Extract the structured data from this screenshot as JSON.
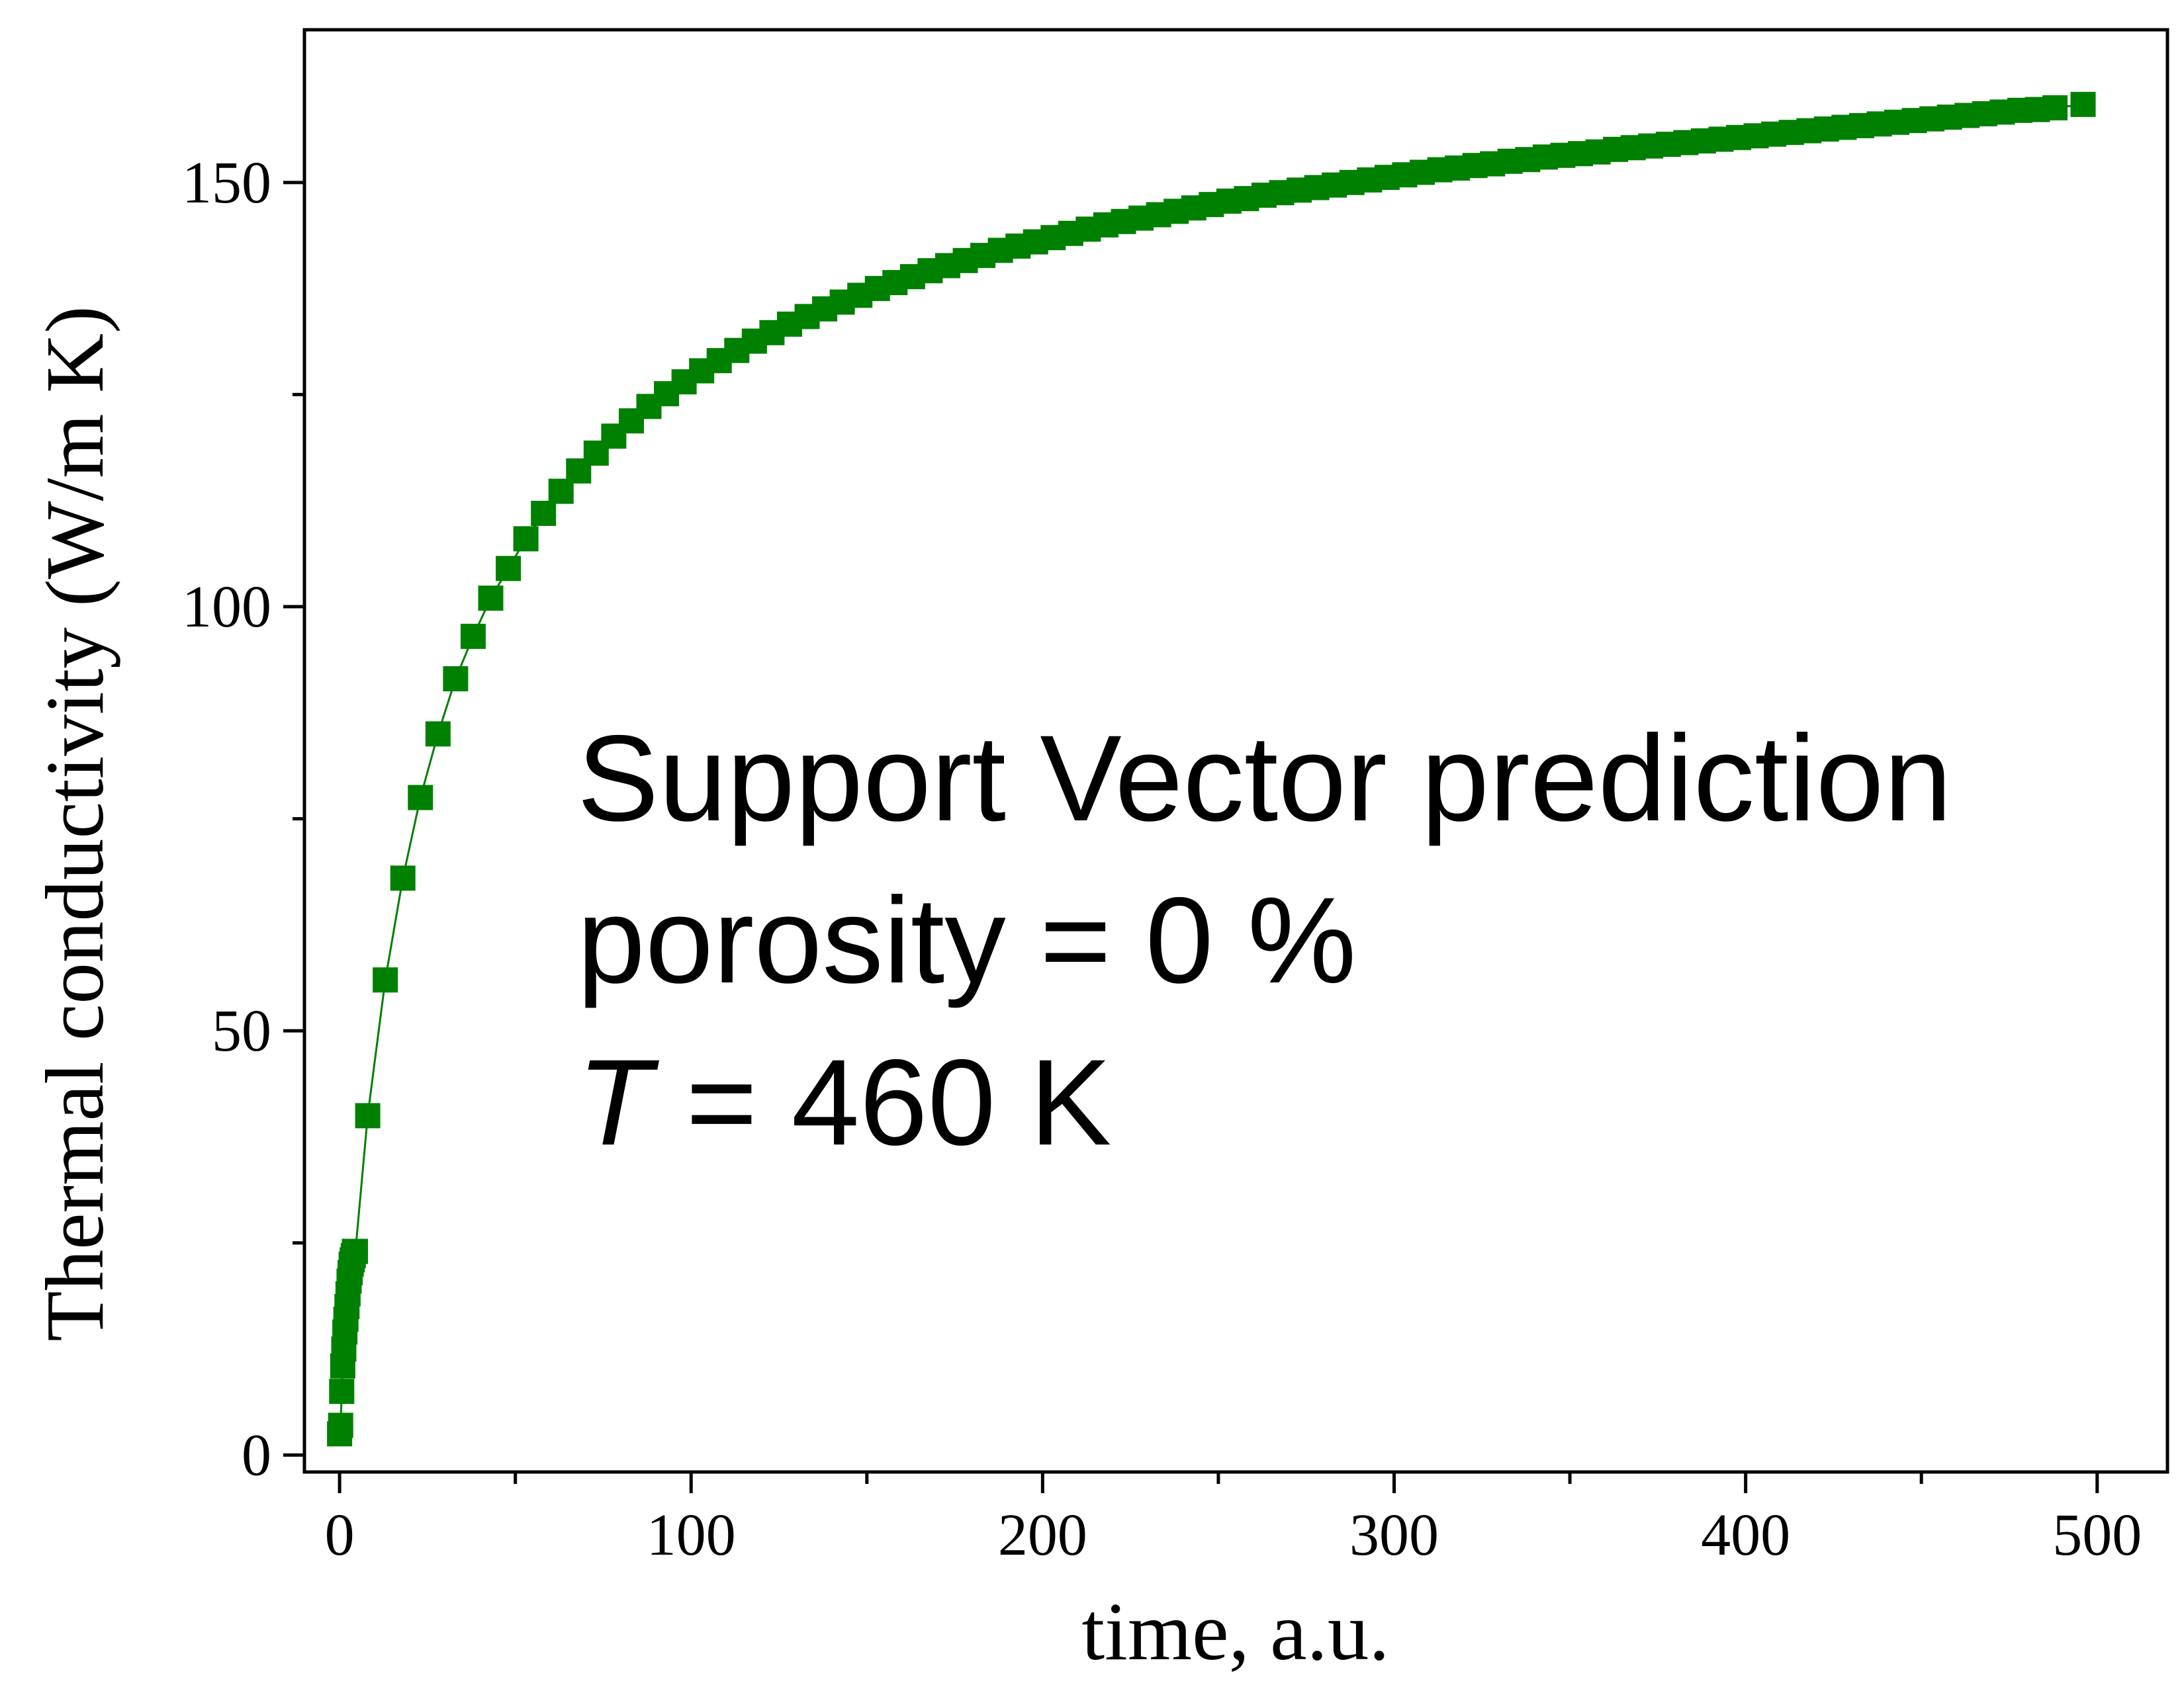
{
  "chart_data": {
    "type": "scatter",
    "xlabel": "time, a.u.",
    "ylabel": "Thermal conductivity (W/m K)",
    "xlim": [
      -10,
      520
    ],
    "ylim": [
      -2,
      168
    ],
    "xticks": [
      0,
      100,
      200,
      300,
      400,
      500
    ],
    "yticks": [
      0,
      50,
      100,
      150
    ],
    "x_minor_step": 50,
    "y_minor_step": 25,
    "grid": false,
    "marker": "square",
    "connect_line": true,
    "color": "#008000",
    "annotations": [
      {
        "text": "Support Vector prediction",
        "italic": false
      },
      {
        "text": "porosity = 0 %",
        "italic": false
      },
      {
        "prefix": "T",
        "text": " = 460 K",
        "prefix_italic": true
      }
    ],
    "series": [
      {
        "x": [
          0,
          0.3,
          0.6,
          0.9,
          1.2,
          1.5,
          1.8,
          2.1,
          2.4,
          2.7,
          3.0,
          3.3,
          3.6,
          3.9,
          4.2,
          4.5,
          8,
          13,
          18,
          23,
          28,
          33,
          38,
          43,
          48,
          53,
          58,
          63,
          68,
          73,
          78,
          83,
          88,
          93,
          98,
          103,
          108,
          113,
          118,
          123,
          128,
          133,
          138,
          143,
          148,
          153,
          158,
          163,
          168,
          173,
          178,
          183,
          188,
          193,
          198,
          203,
          208,
          213,
          218,
          223,
          228,
          233,
          238,
          243,
          248,
          253,
          258,
          263,
          268,
          273,
          278,
          283,
          288,
          293,
          298,
          303,
          308,
          313,
          318,
          323,
          328,
          333,
          338,
          343,
          348,
          353,
          358,
          363,
          368,
          373,
          378,
          383,
          388,
          393,
          398,
          403,
          408,
          413,
          418,
          423,
          428,
          433,
          438,
          443,
          448,
          453,
          458,
          463,
          468,
          473,
          478,
          483,
          488,
          496
        ],
        "y": [
          2.5,
          3.5,
          7.5,
          10.5,
          12.5,
          14.5,
          16,
          17.5,
          19,
          20.5,
          21.5,
          22.5,
          23,
          23.5,
          24,
          24,
          40,
          56,
          68,
          77.5,
          85,
          91.5,
          96.5,
          101,
          104.5,
          108,
          111,
          113.6,
          116,
          118.1,
          120.1,
          121.9,
          123.6,
          125.1,
          126.5,
          127.8,
          129,
          130.2,
          131.3,
          132.3,
          133.3,
          134.2,
          135.1,
          135.9,
          136.7,
          137.5,
          138.2,
          138.9,
          139.6,
          140.2,
          140.8,
          141.4,
          142,
          142.5,
          143,
          143.5,
          144,
          144.5,
          145,
          145.4,
          145.8,
          146.2,
          146.6,
          147,
          147.4,
          147.8,
          148.1,
          148.5,
          148.8,
          149.1,
          149.4,
          149.7,
          150,
          150.3,
          150.6,
          150.9,
          151.2,
          151.5,
          151.7,
          152,
          152.2,
          152.5,
          152.7,
          153,
          153.2,
          153.4,
          153.6,
          153.9,
          154.1,
          154.3,
          154.5,
          154.7,
          154.9,
          155.1,
          155.3,
          155.5,
          155.7,
          155.9,
          156.1,
          156.3,
          156.5,
          156.7,
          156.9,
          157.1,
          157.3,
          157.5,
          157.7,
          157.9,
          158.1,
          158.3,
          158.5,
          158.6,
          158.8,
          159.2
        ]
      }
    ]
  }
}
